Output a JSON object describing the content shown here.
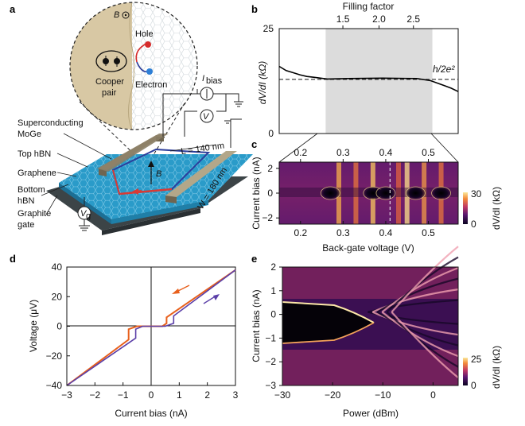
{
  "figure": {
    "panel_labels": [
      "a",
      "b",
      "c",
      "d",
      "e"
    ]
  },
  "schematic": {
    "field_symbol": "B",
    "hole_label": "Hole",
    "electron_label": "Electron",
    "cooper_label_1": "Cooper",
    "cooper_label_2": "pair",
    "current_label": "I",
    "current_sub": "bias",
    "voltmeter": "V",
    "gate_meter": "V",
    "gate_sub": "g",
    "layer_labels": [
      "Superconducting",
      "MoGe",
      "Top hBN",
      "Graphene",
      "Bottom",
      "hBN",
      "Graphite",
      "gate"
    ],
    "length_label": "L = 140 nm",
    "width_label": "W = 180 nm",
    "b_arrow_label": "B",
    "colors": {
      "substrate": "#2a9bc9",
      "graphite": "#4a5356",
      "lead": "#8a7d65",
      "loop_red": "#d83a35",
      "loop_blue": "#2c3d9a",
      "hole": "#d62b2b",
      "electron": "#2e7fd6"
    }
  },
  "chart_data": [
    {
      "panel": "b",
      "type": "line",
      "title": "",
      "top_axis_label": "Filling factor",
      "top_ticks": [
        "1.5",
        "2.0",
        "2.5"
      ],
      "xlim": [
        0.1,
        0.62
      ],
      "ylim": [
        0,
        25
      ],
      "ylabel": "dV/dI (kΩ)",
      "yticks": [
        "0",
        "25"
      ],
      "shaded_region": [
        0.235,
        0.545
      ],
      "reference_line": {
        "value": 12.9,
        "label": "h/2e²"
      },
      "x": [
        0.1,
        0.12,
        0.14,
        0.16,
        0.18,
        0.2,
        0.22,
        0.24,
        0.3,
        0.4,
        0.5,
        0.54,
        0.56,
        0.58,
        0.6,
        0.62
      ],
      "y": [
        16.0,
        15.0,
        14.5,
        14.0,
        13.6,
        13.4,
        13.2,
        13.0,
        13.1,
        13.2,
        13.1,
        12.6,
        12.0,
        11.4,
        10.8,
        10.0
      ],
      "color": "#000000"
    },
    {
      "panel": "c",
      "type": "heatmap",
      "xlabel": "Back-gate voltage (V)",
      "ylabel": "Current bias (nA)",
      "xlim": [
        0.15,
        0.57
      ],
      "ylim": [
        -2.5,
        2.5
      ],
      "xticks": [
        "0.2",
        "0.3",
        "0.4",
        "0.5"
      ],
      "yticks": [
        "2",
        "0",
        "−2"
      ],
      "upper_axis_ticks": [
        "0.2",
        "0.3",
        "0.4",
        "0.5"
      ],
      "colorbar": {
        "label": "dV/dI (kΩ)",
        "min": 0,
        "max": 30,
        "ticks": [
          "30",
          "0"
        ]
      },
      "dashed_marker_x": 0.41,
      "bright_stripes_x": [
        0.29,
        0.33,
        0.37,
        0.43,
        0.45,
        0.49,
        0.53
      ],
      "dark_blobs_x": [
        0.27,
        0.37,
        0.4,
        0.47,
        0.53
      ]
    },
    {
      "panel": "d",
      "type": "line",
      "xlabel": "Current bias (nA)",
      "ylabel": "Voltage (μV)",
      "xlim": [
        -3,
        3
      ],
      "ylim": [
        -40,
        40
      ],
      "xticks": [
        "−3",
        "−2",
        "−1",
        "0",
        "1",
        "2",
        "3"
      ],
      "yticks": [
        "40",
        "20",
        "0",
        "−20",
        "−40"
      ],
      "series": [
        {
          "name": "sweep-down",
          "color": "#e8601c",
          "x": [
            -3,
            -0.8,
            -0.8,
            -0.5,
            0.4,
            0.55,
            0.55,
            3
          ],
          "y": [
            -40,
            -9,
            -2,
            0,
            0,
            2,
            6,
            38
          ]
        },
        {
          "name": "sweep-up",
          "color": "#5b3fa8",
          "x": [
            -3,
            -0.55,
            -0.55,
            -0.3,
            0.5,
            0.8,
            0.8,
            3
          ],
          "y": [
            -40,
            -8,
            -2,
            0,
            0,
            2,
            7,
            38
          ]
        }
      ],
      "arrows": [
        "orange arrow pointing left (decreasing bias)",
        "purple arrow pointing right (increasing bias)"
      ]
    },
    {
      "panel": "e",
      "type": "heatmap",
      "xlabel": "Power (dBm)",
      "ylabel": "Current bias (nA)",
      "xlim": [
        -30,
        5
      ],
      "ylim": [
        -3,
        2
      ],
      "xticks": [
        "−30",
        "−20",
        "−10",
        "0"
      ],
      "yticks": [
        "2",
        "1",
        "0",
        "−1",
        "−2",
        "−3"
      ],
      "colorbar": {
        "label": "dV/dI (kΩ)",
        "min": 0,
        "max": 25,
        "ticks": [
          "25",
          "0"
        ]
      },
      "superconducting_edge": {
        "upper_start": 0.95,
        "lower_start": -0.75,
        "closes_near_dBm": -13
      },
      "fringe_count": 6
    }
  ]
}
